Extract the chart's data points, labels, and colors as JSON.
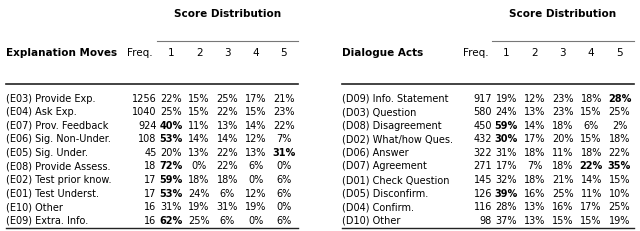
{
  "left_table": {
    "col0_header": "Explanation Moves",
    "freq_header": "Freq.",
    "score_header": "Score Distribution",
    "score_labels": [
      "1",
      "2",
      "3",
      "4",
      "5"
    ],
    "rows": [
      {
        "name": "(E03) Provide Exp.",
        "freq": "1256",
        "scores": [
          "22%",
          "15%",
          "25%",
          "17%",
          "21%"
        ],
        "bold": []
      },
      {
        "name": "(E04) Ask Exp.",
        "freq": "1040",
        "scores": [
          "25%",
          "15%",
          "22%",
          "15%",
          "23%"
        ],
        "bold": []
      },
      {
        "name": "(E07) Prov. Feedback",
        "freq": "924",
        "scores": [
          "40%",
          "11%",
          "13%",
          "14%",
          "22%"
        ],
        "bold": [
          0
        ]
      },
      {
        "name": "(E06) Sig. Non-Under.",
        "freq": "108",
        "scores": [
          "53%",
          "14%",
          "14%",
          "12%",
          "7%"
        ],
        "bold": [
          0
        ]
      },
      {
        "name": "(E05) Sig. Under.",
        "freq": "45",
        "scores": [
          "20%",
          "13%",
          "22%",
          "13%",
          "31%"
        ],
        "bold": [
          4
        ]
      },
      {
        "name": "(E08) Provide Assess.",
        "freq": "18",
        "scores": [
          "72%",
          "0%",
          "22%",
          "6%",
          "0%"
        ],
        "bold": [
          0
        ]
      },
      {
        "name": "(E02) Test prior know.",
        "freq": "17",
        "scores": [
          "59%",
          "18%",
          "18%",
          "0%",
          "6%"
        ],
        "bold": [
          0
        ]
      },
      {
        "name": "(E01) Test Underst.",
        "freq": "17",
        "scores": [
          "53%",
          "24%",
          "6%",
          "12%",
          "6%"
        ],
        "bold": [
          0
        ]
      },
      {
        "name": "(E10) Other",
        "freq": "16",
        "scores": [
          "31%",
          "19%",
          "31%",
          "19%",
          "0%"
        ],
        "bold": []
      },
      {
        "name": "(E09) Extra. Info.",
        "freq": "16",
        "scores": [
          "62%",
          "25%",
          "6%",
          "0%",
          "6%"
        ],
        "bold": [
          0
        ]
      }
    ]
  },
  "right_table": {
    "col0_header": "Dialogue Acts",
    "freq_header": "Freq.",
    "score_header": "Score Distribution",
    "score_labels": [
      "1",
      "2",
      "3",
      "4",
      "5"
    ],
    "rows": [
      {
        "name": "(D09) Info. Statement",
        "freq": "917",
        "scores": [
          "19%",
          "12%",
          "23%",
          "18%",
          "28%"
        ],
        "bold": [
          4
        ]
      },
      {
        "name": "(D03) Question",
        "freq": "580",
        "scores": [
          "24%",
          "13%",
          "23%",
          "15%",
          "25%"
        ],
        "bold": []
      },
      {
        "name": "(D08) Disagreement",
        "freq": "450",
        "scores": [
          "59%",
          "14%",
          "18%",
          "6%",
          "2%"
        ],
        "bold": [
          0
        ]
      },
      {
        "name": "(D02) What/how Ques.",
        "freq": "432",
        "scores": [
          "30%",
          "17%",
          "20%",
          "15%",
          "18%"
        ],
        "bold": [
          0
        ]
      },
      {
        "name": "(D06) Answer",
        "freq": "322",
        "scores": [
          "31%",
          "18%",
          "11%",
          "18%",
          "22%"
        ],
        "bold": []
      },
      {
        "name": "(D07) Agreement",
        "freq": "271",
        "scores": [
          "17%",
          "7%",
          "18%",
          "22%",
          "35%"
        ],
        "bold": [
          3,
          4
        ]
      },
      {
        "name": "(D01) Check Question",
        "freq": "145",
        "scores": [
          "32%",
          "18%",
          "21%",
          "14%",
          "15%"
        ],
        "bold": []
      },
      {
        "name": "(D05) Disconfirm.",
        "freq": "126",
        "scores": [
          "39%",
          "16%",
          "25%",
          "11%",
          "10%"
        ],
        "bold": [
          0
        ]
      },
      {
        "name": "(D04) Confirm.",
        "freq": "116",
        "scores": [
          "28%",
          "13%",
          "16%",
          "17%",
          "25%"
        ],
        "bold": []
      },
      {
        "name": "(D10) Other",
        "freq": "98",
        "scores": [
          "37%",
          "13%",
          "15%",
          "15%",
          "19%"
        ],
        "bold": []
      }
    ]
  },
  "bg_color": "#ffffff",
  "text_color": "#000000",
  "header_fontsize": 7.5,
  "data_fontsize": 7.0
}
